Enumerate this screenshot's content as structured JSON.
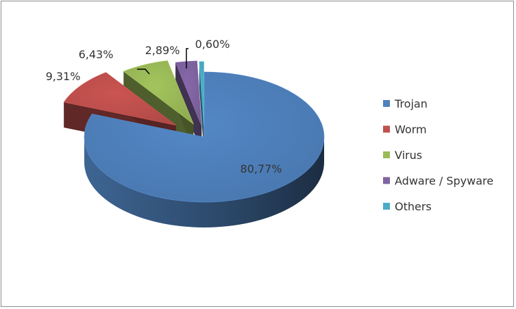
{
  "chart_data": {
    "type": "pie",
    "style": "3d-exploded",
    "title": "",
    "categories": [
      "Trojan",
      "Worm",
      "Virus",
      "Adware / Spyware",
      "Others"
    ],
    "values": [
      80.77,
      9.31,
      6.43,
      2.89,
      0.6
    ],
    "labels": [
      "80,77%",
      "9,31%",
      "6,43%",
      "2,89%",
      "0,60%"
    ],
    "colors": [
      "#4F81BD",
      "#C0504D",
      "#9BBB59",
      "#8064A2",
      "#4BACC6"
    ],
    "legend": "right"
  }
}
